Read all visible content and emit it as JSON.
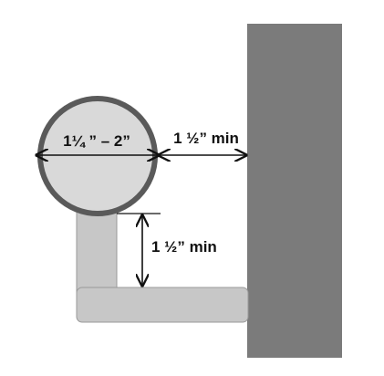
{
  "labels": {
    "diameter": "1¼ ” – 2”",
    "wall_clearance": "1 ½” min",
    "support_clearance": "1 ½” min"
  },
  "colors": {
    "wall": "#7b7b7b",
    "rail_fill": "#d9d9d9",
    "rail_outline": "#5a5a5a",
    "bracket_fill": "#c7c7c7",
    "bracket_stroke": "#9a9a9a",
    "dimension_line": "#111111"
  }
}
